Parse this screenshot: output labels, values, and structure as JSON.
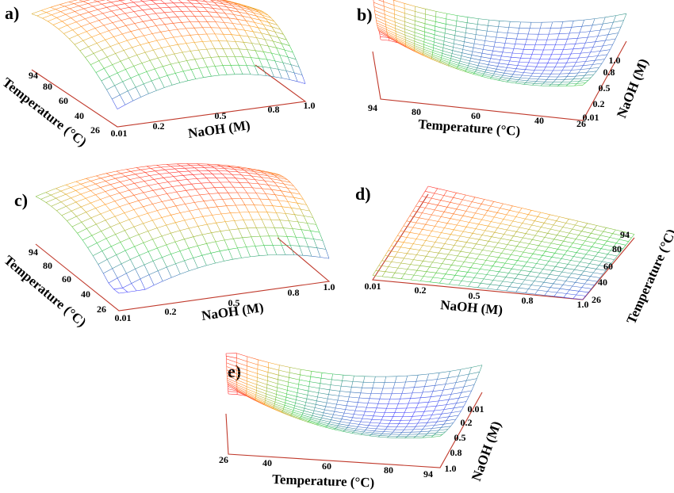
{
  "chart_data": [
    {
      "panel": "a)",
      "type": "surface3d",
      "x_axis": {
        "label": "NaOH (M)",
        "ticks": [
          "0.01",
          "0.2",
          "0.5",
          "0.8",
          "1.0"
        ],
        "range": [
          0.01,
          1.0
        ]
      },
      "y_axis": {
        "label": "Temperature (°C)",
        "ticks": [
          "26",
          "40",
          "60",
          "80",
          "94"
        ],
        "range": [
          26,
          94
        ]
      },
      "surface": {
        "shape": "dome",
        "peak": {
          "NaOH": 0.5,
          "Temperature": 80
        }
      },
      "colors": {
        "low": "#3b3bff",
        "mid": "#2ecc40",
        "upper": "#ff9f1a",
        "high": "#ff2020"
      }
    },
    {
      "panel": "b)",
      "type": "surface3d",
      "x_axis": {
        "label": "Temperature (°C)",
        "ticks": [
          "94",
          "80",
          "60",
          "40",
          "26"
        ],
        "range": [
          26,
          94
        ]
      },
      "y_axis": {
        "label": "NaOH (M)",
        "ticks": [
          "0.01",
          "0.2",
          "0.5",
          "0.8",
          "1.0"
        ],
        "range": [
          0.01,
          1.0
        ]
      },
      "surface": {
        "shape": "saddle",
        "minimum": {
          "Temperature": 45,
          "NaOH": 0.6
        }
      },
      "colors": {
        "low": "#3b3bff",
        "mid": "#2ecc40",
        "upper": "#ff9f1a",
        "high": "#ff2020"
      }
    },
    {
      "panel": "c)",
      "type": "surface3d",
      "x_axis": {
        "label": "NaOH (M)",
        "ticks": [
          "0.01",
          "0.2",
          "0.5",
          "0.8",
          "1.0"
        ],
        "range": [
          0.01,
          1.0
        ]
      },
      "y_axis": {
        "label": "Temperature (°C)",
        "ticks": [
          "26",
          "40",
          "60",
          "80",
          "94"
        ],
        "range": [
          26,
          94
        ]
      },
      "surface": {
        "shape": "dome",
        "peak": {
          "NaOH": 0.6,
          "Temperature": 80
        }
      },
      "colors": {
        "low": "#3b3bff",
        "mid": "#2ecc40",
        "upper": "#ff9f1a",
        "high": "#ff2020"
      }
    },
    {
      "panel": "d)",
      "type": "surface3d",
      "x_axis": {
        "label": "NaOH (M)",
        "ticks": [
          "0.01",
          "0.2",
          "0.5",
          "0.8",
          "1.0"
        ],
        "range": [
          0.01,
          1.0
        ]
      },
      "y_axis": {
        "label": "Temperature (°C)",
        "ticks": [
          "26",
          "40",
          "60",
          "80",
          "94"
        ],
        "range": [
          26,
          94
        ]
      },
      "surface": {
        "shape": "inclined-plane",
        "highest_corner": {
          "NaOH": 0.01,
          "Temperature": 94
        }
      },
      "colors": {
        "low": "#3b3bff",
        "mid": "#2ecc40",
        "upper": "#ff9f1a",
        "high": "#ff2020"
      }
    },
    {
      "panel": "e)",
      "type": "surface3d",
      "x_axis": {
        "label": "Temperature (°C)",
        "ticks": [
          "26",
          "40",
          "60",
          "80",
          "94"
        ],
        "range": [
          26,
          94
        ]
      },
      "y_axis": {
        "label": "NaOH (M)",
        "ticks": [
          "0.01",
          "0.2",
          "0.5",
          "0.8",
          "1.0"
        ],
        "range": [
          0.01,
          1.0
        ]
      },
      "surface": {
        "shape": "saddle",
        "minimum": {
          "Temperature": 75,
          "NaOH": 0.6
        }
      },
      "colors": {
        "low": "#3b3bff",
        "mid": "#2ecc40",
        "upper": "#ff9f1a",
        "high": "#ff2020"
      }
    }
  ]
}
